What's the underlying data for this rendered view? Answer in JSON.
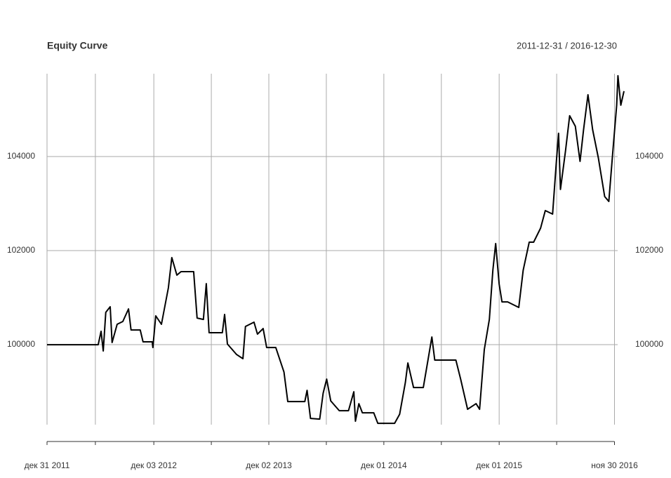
{
  "chart_data": {
    "type": "line",
    "title": "Equity Curve",
    "subtitle": "2011-12-31 / 2016-12-30",
    "x": [
      "2011-12-31",
      "2012-06-10",
      "2012-06-19",
      "2012-06-26",
      "2012-07-04",
      "2012-07-18",
      "2012-07-24",
      "2012-08-09",
      "2012-08-27",
      "2012-09-14",
      "2012-09-22",
      "2012-10-21",
      "2012-10-30",
      "2012-11-28",
      "2012-11-30",
      "2012-12-09",
      "2012-12-27",
      "2013-01-18",
      "2013-01-29",
      "2013-02-14",
      "2013-02-27",
      "2013-04-08",
      "2013-04-19",
      "2013-05-09",
      "2013-05-18",
      "2013-05-27",
      "2013-07-08",
      "2013-07-15",
      "2013-07-24",
      "2013-08-22",
      "2013-09-11",
      "2013-09-19",
      "2013-10-16",
      "2013-10-27",
      "2013-11-14",
      "2013-11-25",
      "2013-12-24",
      "2014-01-19",
      "2014-01-31",
      "2014-03-26",
      "2014-04-02",
      "2014-04-13",
      "2014-05-12",
      "2014-05-23",
      "2014-06-03",
      "2014-06-16",
      "2014-07-13",
      "2014-08-11",
      "2014-08-28",
      "2014-09-02",
      "2014-09-13",
      "2014-09-24",
      "2014-10-30",
      "2014-11-12",
      "2015-01-04",
      "2015-01-20",
      "2015-02-07",
      "2015-02-15",
      "2015-03-05",
      "2015-04-05",
      "2015-04-19",
      "2015-05-02",
      "2015-05-11",
      "2015-07-17",
      "2015-08-01",
      "2015-08-23",
      "2015-09-19",
      "2015-09-30",
      "2015-10-15",
      "2015-10-31",
      "2015-11-11",
      "2015-11-20",
      "2015-12-01",
      "2015-12-10",
      "2015-12-28",
      "2016-02-01",
      "2016-02-15",
      "2016-03-05",
      "2016-03-19",
      "2016-04-10",
      "2016-04-25",
      "2016-05-18",
      "2016-05-30",
      "2016-06-06",
      "2016-06-12",
      "2016-06-28",
      "2016-07-11",
      "2016-07-29",
      "2016-08-13",
      "2016-08-24",
      "2016-09-07",
      "2016-09-22",
      "2016-10-10",
      "2016-10-30",
      "2016-11-12",
      "2016-11-24",
      "2016-12-07",
      "2016-12-11",
      "2016-12-20",
      "2016-12-30"
    ],
    "series": [
      {
        "name": "Equity",
        "color": "#000000",
        "values": [
          100000,
          100000,
          100284,
          99866,
          100687,
          100806,
          100045,
          100433,
          100493,
          100761,
          100313,
          100313,
          100060,
          100060,
          99940,
          100612,
          100433,
          101209,
          101851,
          101478,
          101552,
          101552,
          100567,
          100537,
          101298,
          100254,
          100254,
          100642,
          100015,
          99791,
          99702,
          100388,
          100478,
          100224,
          100343,
          99940,
          99940,
          99418,
          98791,
          98791,
          99030,
          98433,
          98418,
          98970,
          99269,
          98806,
          98597,
          98597,
          99000,
          98373,
          98746,
          98552,
          98552,
          98328,
          98328,
          98522,
          99194,
          99612,
          99090,
          99090,
          99642,
          100164,
          99672,
          99672,
          99269,
          98627,
          98746,
          98627,
          99896,
          100537,
          101582,
          102149,
          101284,
          100910,
          100910,
          100791,
          101582,
          102179,
          102179,
          102478,
          102851,
          102776,
          103896,
          104493,
          103299,
          104119,
          104866,
          104642,
          103896,
          104567,
          105313,
          104567,
          103970,
          103149,
          103045,
          104045,
          105090,
          105717,
          105090,
          105388
        ]
      }
    ],
    "xlim": [
      "2011-12-31",
      "2016-12-30"
    ],
    "xticks": [
      {
        "value": "2011-12-31",
        "label": "дек 31 2011"
      },
      {
        "value": "2012-12-03",
        "label": "дек 03 2012"
      },
      {
        "value": "2013-12-02",
        "label": "дек 02 2013"
      },
      {
        "value": "2014-12-01",
        "label": "дек 01 2014"
      },
      {
        "value": "2015-12-01",
        "label": "дек 01 2015"
      },
      {
        "value": "2016-11-30",
        "label": "ноя 30 2016"
      }
    ],
    "xminor": [
      "2012-06-01",
      "2013-06-03",
      "2014-06-02",
      "2015-06-01",
      "2016-05-31"
    ],
    "ylim": [
      98300,
      105760
    ],
    "yticks": [
      100000,
      102000,
      104000
    ],
    "grid": true
  }
}
